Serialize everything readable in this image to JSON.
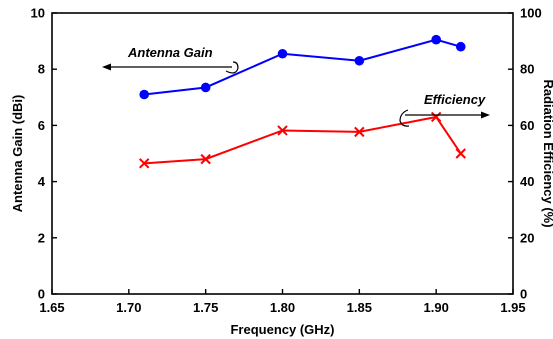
{
  "chart_data": {
    "type": "line",
    "title": "",
    "xlabel": "Frequency (GHz)",
    "ylabel_left": "Antenna Gain (dBi)",
    "ylabel_right": "Radiation Efficiency (%)",
    "xlim": [
      1.65,
      1.95
    ],
    "ylim_left": [
      0,
      10
    ],
    "ylim_right": [
      0,
      100
    ],
    "x_ticks": [
      "1.65",
      "1.70",
      "1.75",
      "1.80",
      "1.85",
      "1.90",
      "1.95"
    ],
    "y_left_ticks": [
      "0",
      "2",
      "4",
      "6",
      "8",
      "10"
    ],
    "y_right_ticks": [
      "0",
      "20",
      "40",
      "60",
      "80",
      "100"
    ],
    "grid": false,
    "series": [
      {
        "name": "Antenna Gain",
        "axis": "left",
        "color": "#0000ff",
        "marker": "circle",
        "x": [
          1.71,
          1.75,
          1.8,
          1.85,
          1.9,
          1.916
        ],
        "values": [
          7.1,
          7.35,
          8.55,
          8.3,
          9.05,
          8.8
        ]
      },
      {
        "name": "Efficiency",
        "axis": "right",
        "color": "#ff0000",
        "marker": "x",
        "x": [
          1.71,
          1.75,
          1.8,
          1.85,
          1.9,
          1.916
        ],
        "values": [
          46.5,
          48,
          58.2,
          57.7,
          63,
          50
        ]
      }
    ],
    "annotations": [
      {
        "text": "Antenna Gain",
        "series": 0,
        "arrow": "left"
      },
      {
        "text": "Efficiency",
        "series": 1,
        "arrow": "right"
      }
    ]
  }
}
